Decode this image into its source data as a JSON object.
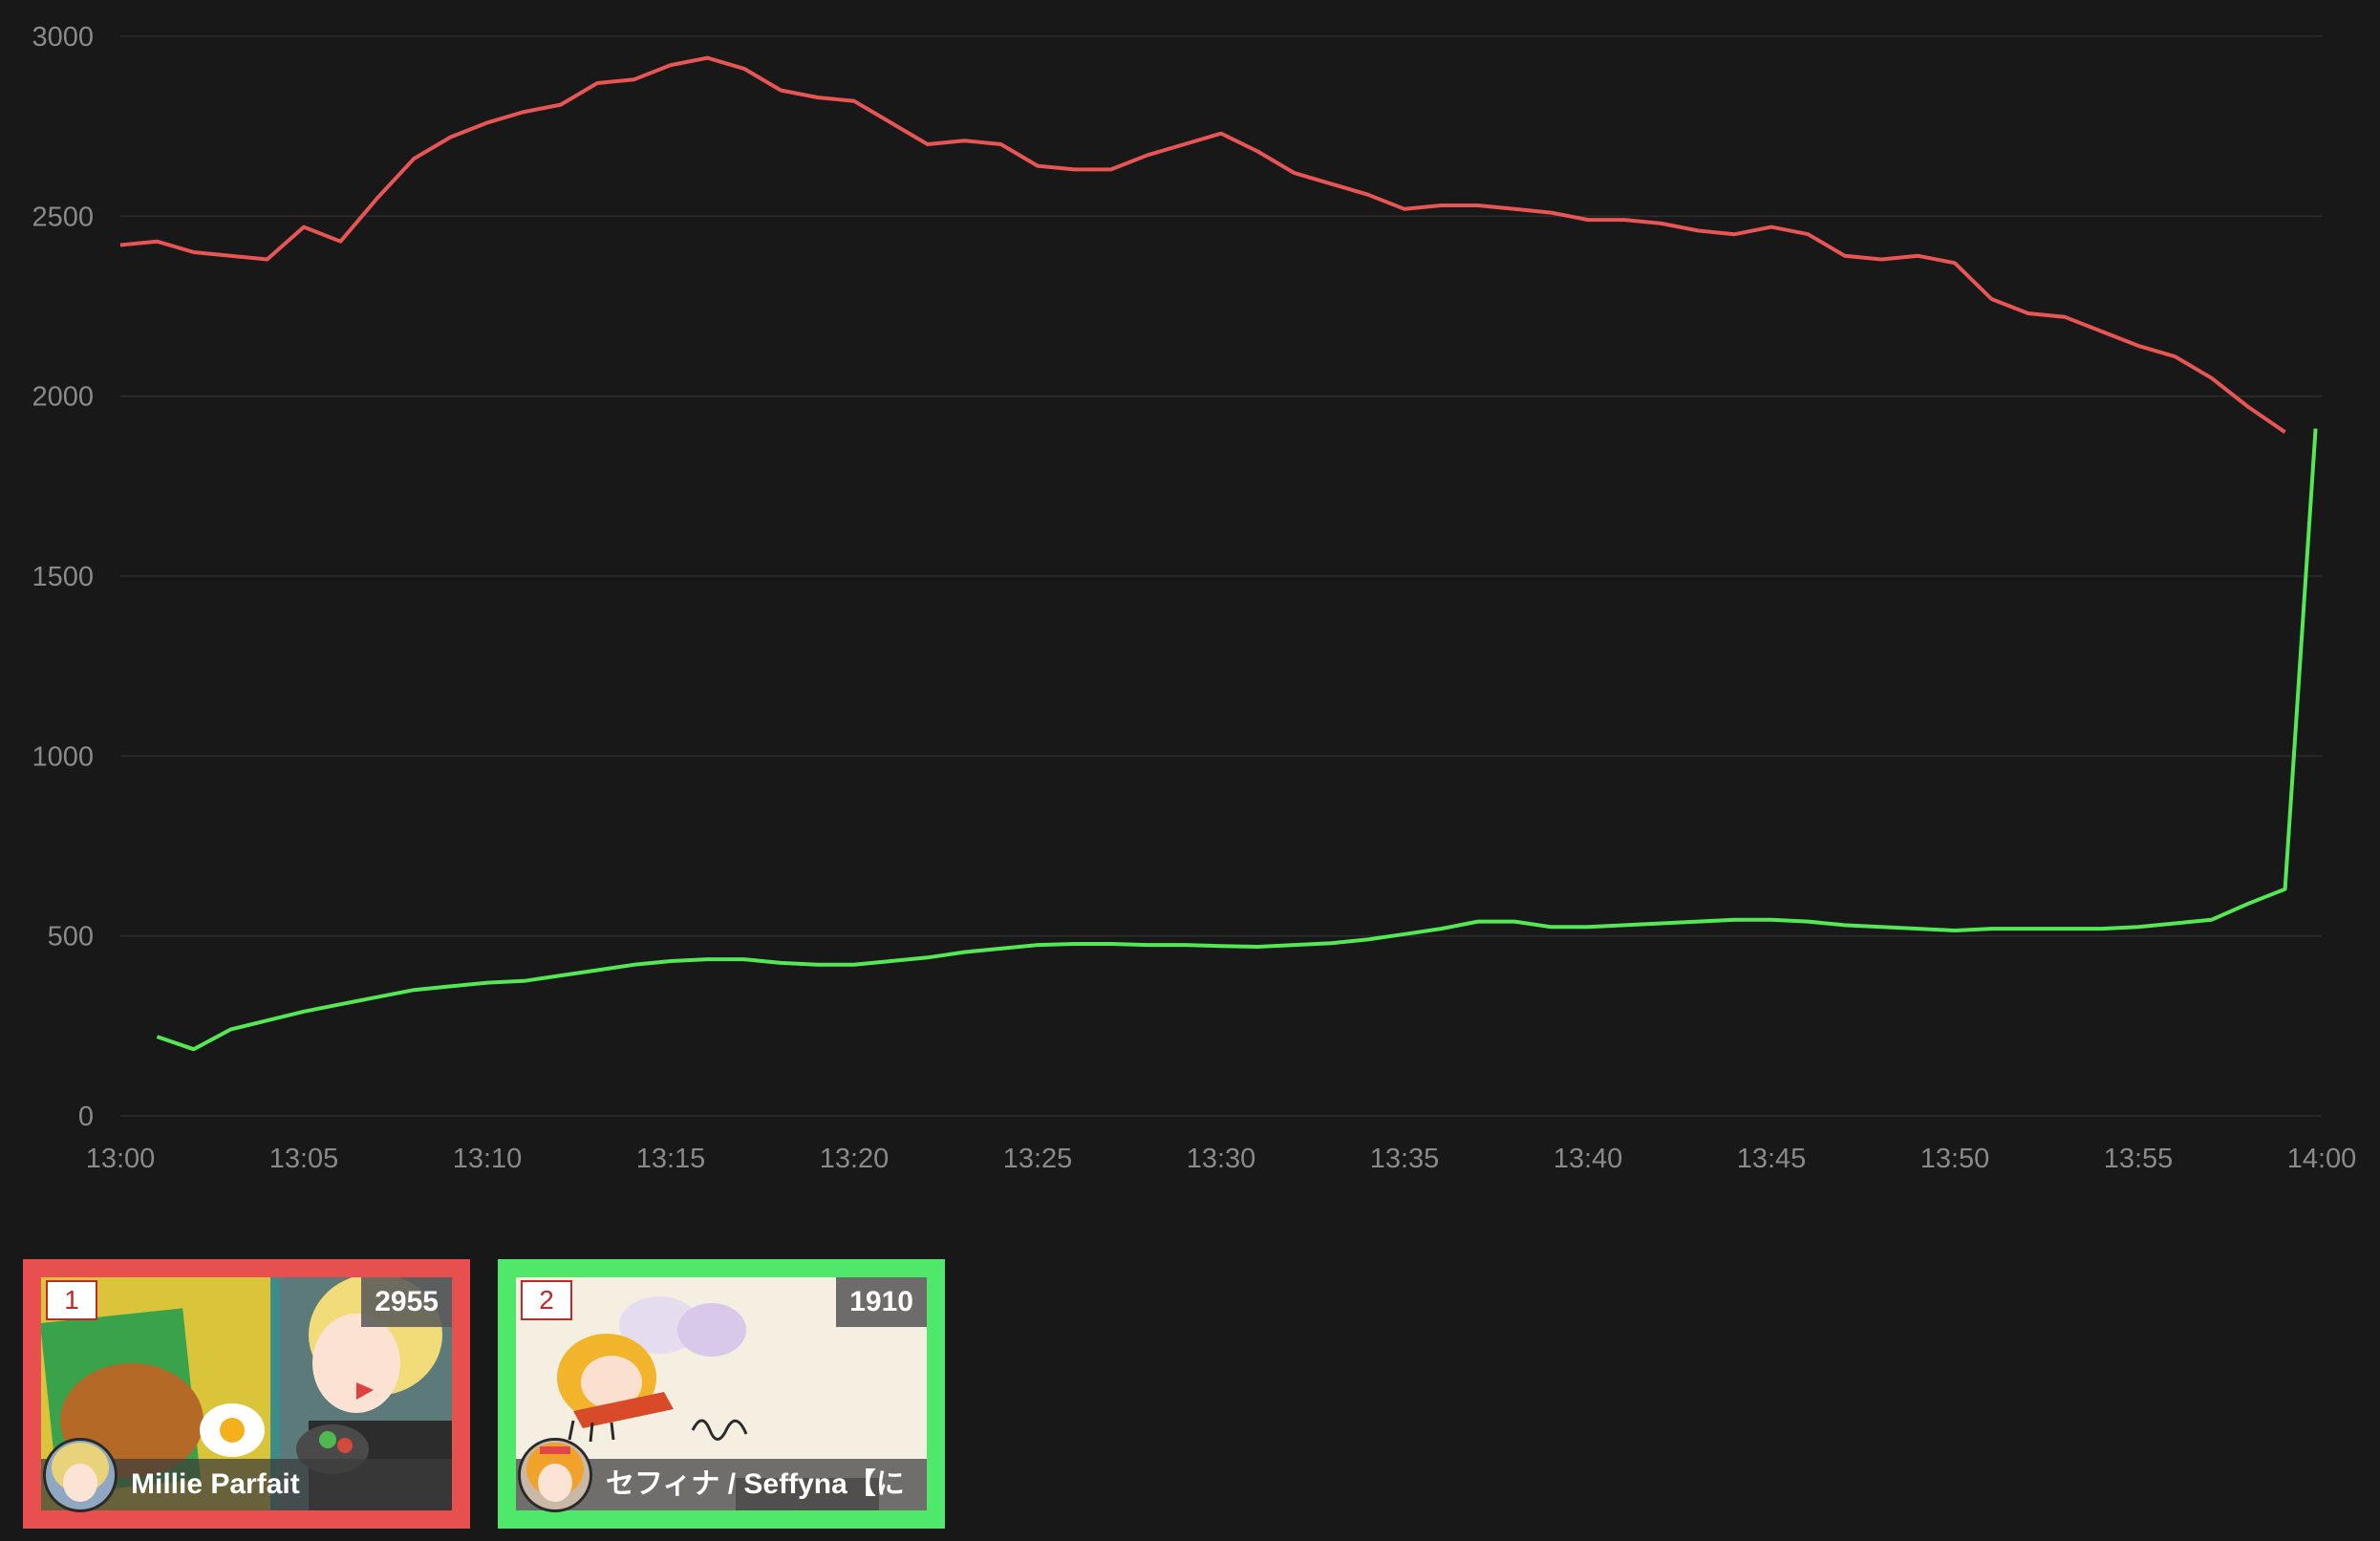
{
  "chart_data": {
    "type": "line",
    "title": "",
    "xlabel": "",
    "ylabel": "",
    "ylim": [
      0,
      3000
    ],
    "y_ticks": [
      "0",
      "500",
      "1000",
      "1500",
      "2000",
      "2500",
      "3000"
    ],
    "x_ticks": [
      "13:00",
      "13:05",
      "13:10",
      "13:15",
      "13:20",
      "13:25",
      "13:30",
      "13:35",
      "13:40",
      "13:45",
      "13:50",
      "13:55",
      "14:00"
    ],
    "xlim": [
      "13:00",
      "14:00"
    ],
    "grid": true,
    "series": [
      {
        "color": "#e85555",
        "points": [
          [
            "13:00",
            2420
          ],
          [
            "13:01",
            2430
          ],
          [
            "13:02",
            2400
          ],
          [
            "13:03",
            2390
          ],
          [
            "13:04",
            2380
          ],
          [
            "13:05",
            2470
          ],
          [
            "13:06",
            2430
          ],
          [
            "13:07",
            2550
          ],
          [
            "13:08",
            2660
          ],
          [
            "13:09",
            2720
          ],
          [
            "13:10",
            2760
          ],
          [
            "13:11",
            2790
          ],
          [
            "13:12",
            2810
          ],
          [
            "13:13",
            2870
          ],
          [
            "13:14",
            2880
          ],
          [
            "13:15",
            2920
          ],
          [
            "13:16",
            2940
          ],
          [
            "13:17",
            2910
          ],
          [
            "13:18",
            2850
          ],
          [
            "13:19",
            2830
          ],
          [
            "13:20",
            2820
          ],
          [
            "13:21",
            2760
          ],
          [
            "13:22",
            2700
          ],
          [
            "13:23",
            2710
          ],
          [
            "13:24",
            2700
          ],
          [
            "13:25",
            2640
          ],
          [
            "13:26",
            2630
          ],
          [
            "13:27",
            2630
          ],
          [
            "13:28",
            2670
          ],
          [
            "13:29",
            2700
          ],
          [
            "13:30",
            2730
          ],
          [
            "13:31",
            2680
          ],
          [
            "13:32",
            2620
          ],
          [
            "13:33",
            2590
          ],
          [
            "13:34",
            2560
          ],
          [
            "13:35",
            2520
          ],
          [
            "13:36",
            2530
          ],
          [
            "13:37",
            2530
          ],
          [
            "13:38",
            2520
          ],
          [
            "13:39",
            2510
          ],
          [
            "13:40",
            2490
          ],
          [
            "13:41",
            2490
          ],
          [
            "13:42",
            2480
          ],
          [
            "13:43",
            2460
          ],
          [
            "13:44",
            2450
          ],
          [
            "13:45",
            2470
          ],
          [
            "13:46",
            2450
          ],
          [
            "13:47",
            2390
          ],
          [
            "13:48",
            2380
          ],
          [
            "13:49",
            2390
          ],
          [
            "13:50",
            2370
          ],
          [
            "13:51",
            2270
          ],
          [
            "13:52",
            2230
          ],
          [
            "13:53",
            2220
          ],
          [
            "13:54",
            2180
          ],
          [
            "13:55",
            2140
          ],
          [
            "13:56",
            2110
          ],
          [
            "13:57",
            2050
          ],
          [
            "13:58",
            1970
          ],
          [
            "13:59",
            1900
          ]
        ]
      },
      {
        "color": "#55e855",
        "points": [
          [
            "13:01",
            220
          ],
          [
            "13:02",
            185
          ],
          [
            "13:03",
            240
          ],
          [
            "13:04",
            265
          ],
          [
            "13:05",
            290
          ],
          [
            "13:06",
            310
          ],
          [
            "13:07",
            330
          ],
          [
            "13:08",
            350
          ],
          [
            "13:09",
            360
          ],
          [
            "13:10",
            370
          ],
          [
            "13:11",
            375
          ],
          [
            "13:12",
            390
          ],
          [
            "13:13",
            405
          ],
          [
            "13:14",
            420
          ],
          [
            "13:15",
            430
          ],
          [
            "13:16",
            435
          ],
          [
            "13:17",
            435
          ],
          [
            "13:18",
            425
          ],
          [
            "13:19",
            420
          ],
          [
            "13:20",
            420
          ],
          [
            "13:21",
            430
          ],
          [
            "13:22",
            440
          ],
          [
            "13:23",
            455
          ],
          [
            "13:24",
            465
          ],
          [
            "13:25",
            475
          ],
          [
            "13:26",
            478
          ],
          [
            "13:27",
            478
          ],
          [
            "13:28",
            475
          ],
          [
            "13:29",
            475
          ],
          [
            "13:30",
            472
          ],
          [
            "13:31",
            470
          ],
          [
            "13:32",
            475
          ],
          [
            "13:33",
            480
          ],
          [
            "13:34",
            490
          ],
          [
            "13:35",
            505
          ],
          [
            "13:36",
            520
          ],
          [
            "13:37",
            540
          ],
          [
            "13:38",
            540
          ],
          [
            "13:39",
            525
          ],
          [
            "13:40",
            525
          ],
          [
            "13:41",
            530
          ],
          [
            "13:42",
            535
          ],
          [
            "13:43",
            540
          ],
          [
            "13:44",
            545
          ],
          [
            "13:45",
            545
          ],
          [
            "13:46",
            540
          ],
          [
            "13:47",
            530
          ],
          [
            "13:48",
            525
          ],
          [
            "13:49",
            520
          ],
          [
            "13:50",
            515
          ],
          [
            "13:51",
            520
          ],
          [
            "13:52",
            520
          ],
          [
            "13:53",
            520
          ],
          [
            "13:54",
            520
          ],
          [
            "13:55",
            525
          ],
          [
            "13:56",
            535
          ],
          [
            "13:57",
            545
          ],
          [
            "13:58",
            590
          ],
          [
            "13:59",
            630
          ],
          [
            "13:59:50",
            1910
          ]
        ]
      }
    ]
  },
  "cards": [
    {
      "rank": "1",
      "count": "2955",
      "name": "Millie Parfait",
      "color": "#e85050"
    },
    {
      "rank": "2",
      "count": "1910",
      "name": "セフィナ / Seffyna【に",
      "color": "#50e86a"
    }
  ]
}
